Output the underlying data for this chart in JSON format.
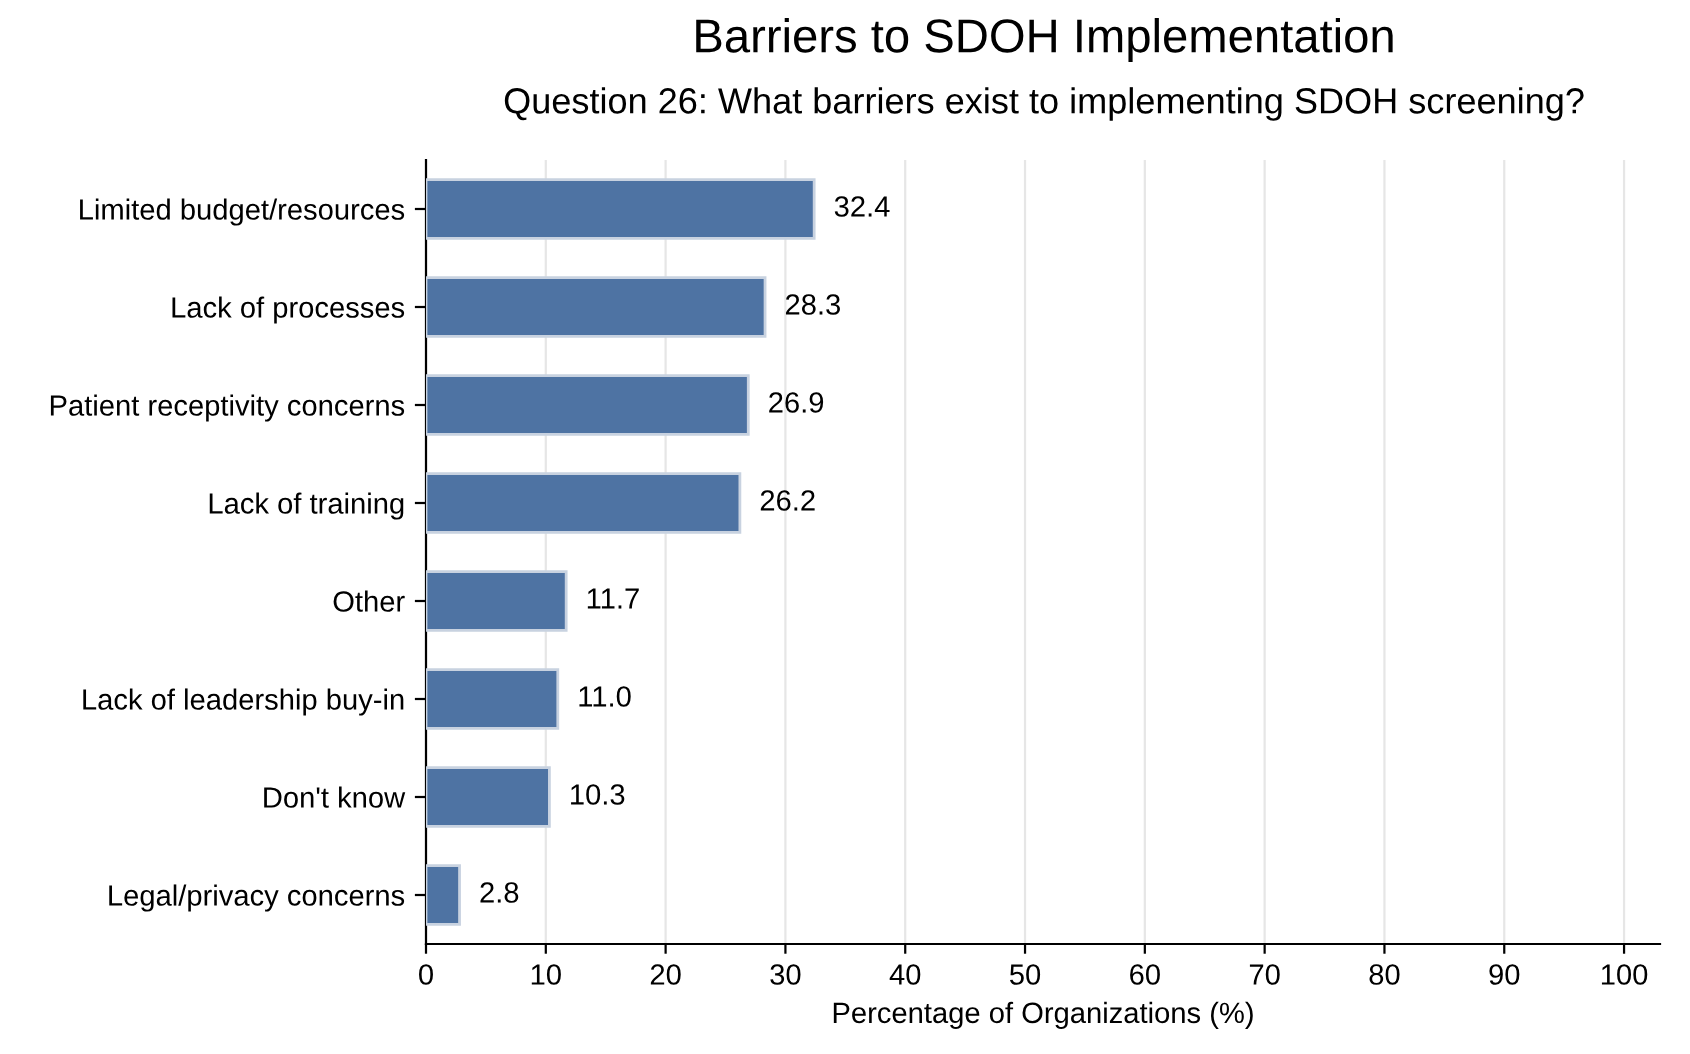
{
  "chart_data": {
    "type": "bar",
    "orientation": "horizontal",
    "title": "Barriers to SDOH Implementation",
    "subtitle": "Question 26: What barriers exist to implementing SDOH screening?",
    "xlabel": "Percentage of Organizations (%)",
    "categories": [
      "Limited budget/resources",
      "Lack of processes",
      "Patient receptivity concerns",
      "Lack of training",
      "Other",
      "Lack of leadership buy-in",
      "Don't know",
      "Legal/privacy concerns"
    ],
    "values": [
      32.4,
      28.3,
      26.9,
      26.2,
      11.7,
      11.0,
      10.3,
      2.8
    ],
    "value_labels": [
      "32.4",
      "28.3",
      "26.9",
      "26.2",
      "11.7",
      "11.0",
      "10.3",
      "2.8"
    ],
    "color": "#4e73a3",
    "xlim": [
      0,
      103
    ],
    "xticks": [
      0,
      10,
      20,
      30,
      40,
      50,
      60,
      70,
      80,
      90,
      100
    ],
    "grid": "x",
    "legend": false
  }
}
